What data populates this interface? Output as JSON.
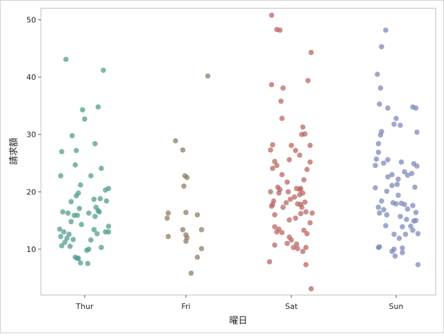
{
  "chart_data": {
    "type": "scatter",
    "subtype": "strip-plot-with-jitter",
    "xlabel": "曜日",
    "ylabel": "請求額",
    "categories": [
      "Thur",
      "Fri",
      "Sat",
      "Sun"
    ],
    "ylim": [
      2,
      52
    ],
    "yticks": [
      10,
      20,
      30,
      40,
      50
    ],
    "grid": false,
    "legend": "none",
    "colors": {
      "Thur": "#4c9a8c",
      "Fri": "#8f7a5e",
      "Sat": "#b8625d",
      "Sun": "#7a86b8"
    },
    "series": [
      {
        "category": "Thur",
        "points": [
          [
            -0.18,
            43.1
          ],
          [
            0.18,
            41.2
          ],
          [
            0.13,
            34.8
          ],
          [
            -0.02,
            34.3
          ],
          [
            0.0,
            32.7
          ],
          [
            -0.12,
            29.8
          ],
          [
            0.1,
            28.4
          ],
          [
            -0.22,
            27.0
          ],
          [
            -0.08,
            27.2
          ],
          [
            -0.09,
            24.7
          ],
          [
            0.16,
            24.1
          ],
          [
            -0.23,
            22.8
          ],
          [
            0.06,
            22.8
          ],
          [
            -0.04,
            21.2
          ],
          [
            0.23,
            20.6
          ],
          [
            0.2,
            20.3
          ],
          [
            -0.06,
            19.8
          ],
          [
            -0.08,
            19.3
          ],
          [
            -0.13,
            18.3
          ],
          [
            0.15,
            18.8
          ],
          [
            0.09,
            18.7
          ],
          [
            0.21,
            18.4
          ],
          [
            0.11,
            17.3
          ],
          [
            -0.05,
            17.1
          ],
          [
            0.14,
            16.5
          ],
          [
            -0.21,
            16.5
          ],
          [
            0.13,
            16.7
          ],
          [
            -0.16,
            16.3
          ],
          [
            0.04,
            16.3
          ],
          [
            -0.1,
            15.9
          ],
          [
            -0.07,
            15.9
          ],
          [
            0.1,
            15.7
          ],
          [
            -0.13,
            14.8
          ],
          [
            0.23,
            14.0
          ],
          [
            -0.03,
            14.3
          ],
          [
            0.09,
            13.4
          ],
          [
            -0.24,
            13.5
          ],
          [
            -0.2,
            13.0
          ],
          [
            0.2,
            13.0
          ],
          [
            0.23,
            13.0
          ],
          [
            0.12,
            12.7
          ],
          [
            -0.15,
            12.6
          ],
          [
            -0.23,
            12.2
          ],
          [
            -0.17,
            11.9
          ],
          [
            0.06,
            11.6
          ],
          [
            -0.11,
            11.7
          ],
          [
            -0.19,
            11.2
          ],
          [
            0.16,
            10.3
          ],
          [
            -0.22,
            10.6
          ],
          [
            -0.14,
            10.5
          ],
          [
            0.04,
            10.0
          ],
          [
            0.02,
            9.8
          ],
          [
            -0.09,
            8.6
          ],
          [
            -0.06,
            8.4
          ],
          [
            -0.07,
            8.4
          ],
          [
            -0.04,
            7.6
          ],
          [
            0.03,
            7.5
          ]
        ]
      },
      {
        "category": "Fri",
        "points": [
          [
            0.21,
            40.2
          ],
          [
            -0.1,
            28.9
          ],
          [
            -0.03,
            27.3
          ],
          [
            -0.01,
            22.8
          ],
          [
            0.01,
            22.5
          ],
          [
            -0.02,
            21.0
          ],
          [
            -0.17,
            16.3
          ],
          [
            0.0,
            16.4
          ],
          [
            0.11,
            16.0
          ],
          [
            -0.18,
            15.4
          ],
          [
            -0.03,
            13.4
          ],
          [
            0.15,
            13.4
          ],
          [
            0.0,
            12.5
          ],
          [
            -0.17,
            12.2
          ],
          [
            0.01,
            12.0
          ],
          [
            0.0,
            11.4
          ],
          [
            0.15,
            10.1
          ],
          [
            0.11,
            8.6
          ],
          [
            0.05,
            5.8
          ]
        ]
      },
      {
        "category": "Sat",
        "points": [
          [
            -0.19,
            50.8
          ],
          [
            -0.14,
            48.3
          ],
          [
            -0.11,
            48.2
          ],
          [
            0.19,
            44.3
          ],
          [
            0.16,
            39.4
          ],
          [
            -0.19,
            38.7
          ],
          [
            -0.08,
            38.1
          ],
          [
            -0.1,
            35.8
          ],
          [
            -0.09,
            32.8
          ],
          [
            0.11,
            31.3
          ],
          [
            0.13,
            30.1
          ],
          [
            0.1,
            30.0
          ],
          [
            0.0,
            28.1
          ],
          [
            0.18,
            28.1
          ],
          [
            -0.18,
            28.2
          ],
          [
            -0.2,
            27.3
          ],
          [
            0.04,
            27.2
          ],
          [
            0.08,
            26.4
          ],
          [
            -0.02,
            25.6
          ],
          [
            -0.16,
            25.3
          ],
          [
            0.18,
            25.2
          ],
          [
            -0.14,
            24.6
          ],
          [
            -0.18,
            24.1
          ],
          [
            0.15,
            23.9
          ],
          [
            -0.09,
            23.0
          ],
          [
            0.12,
            22.1
          ],
          [
            -0.04,
            21.7
          ],
          [
            -0.13,
            20.8
          ],
          [
            -0.11,
            20.4
          ],
          [
            0.05,
            20.6
          ],
          [
            0.09,
            20.6
          ],
          [
            0.08,
            20.4
          ],
          [
            -0.2,
            20.0
          ],
          [
            -0.03,
            20.0
          ],
          [
            -0.12,
            19.8
          ],
          [
            0.11,
            19.8
          ],
          [
            0.08,
            19.5
          ],
          [
            0.03,
            19.1
          ],
          [
            -0.01,
            18.7
          ],
          [
            -0.17,
            18.4
          ],
          [
            0.13,
            18.2
          ],
          [
            -0.05,
            18.1
          ],
          [
            0.06,
            17.9
          ],
          [
            0.09,
            17.8
          ],
          [
            -0.18,
            17.8
          ],
          [
            -0.19,
            17.5
          ],
          [
            0.1,
            17.3
          ],
          [
            -0.08,
            17.3
          ],
          [
            0.14,
            16.5
          ],
          [
            0.2,
            16.3
          ],
          [
            0.09,
            16.2
          ],
          [
            -0.16,
            16.0
          ],
          [
            0.04,
            15.4
          ],
          [
            -0.02,
            15.1
          ],
          [
            0.18,
            14.6
          ],
          [
            -0.16,
            13.9
          ],
          [
            -0.12,
            13.5
          ],
          [
            0.12,
            13.3
          ],
          [
            -0.14,
            13.0
          ],
          [
            -0.09,
            12.9
          ],
          [
            0.15,
            12.7
          ],
          [
            -0.02,
            12.1
          ],
          [
            0.0,
            11.6
          ],
          [
            -0.04,
            11.0
          ],
          [
            0.05,
            10.9
          ],
          [
            -0.16,
            10.7
          ],
          [
            0.14,
            10.3
          ],
          [
            0.02,
            10.3
          ],
          [
            0.06,
            10.1
          ],
          [
            0.11,
            9.6
          ],
          [
            -0.21,
            7.8
          ],
          [
            0.14,
            7.3
          ],
          [
            0.19,
            3.1
          ]
        ]
      },
      {
        "category": "Sun",
        "points": [
          [
            -0.1,
            48.2
          ],
          [
            -0.14,
            45.3
          ],
          [
            -0.18,
            40.5
          ],
          [
            -0.15,
            38.1
          ],
          [
            -0.16,
            35.3
          ],
          [
            0.16,
            34.8
          ],
          [
            0.19,
            34.6
          ],
          [
            -0.08,
            34.6
          ],
          [
            0.0,
            32.8
          ],
          [
            -0.02,
            31.8
          ],
          [
            0.04,
            31.6
          ],
          [
            0.2,
            30.4
          ],
          [
            -0.14,
            30.5
          ],
          [
            -0.15,
            29.9
          ],
          [
            -0.17,
            28.4
          ],
          [
            -0.17,
            26.9
          ],
          [
            -0.08,
            25.6
          ],
          [
            -0.19,
            25.7
          ],
          [
            0.05,
            25.2
          ],
          [
            -0.12,
            25.0
          ],
          [
            0.17,
            24.9
          ],
          [
            -0.2,
            24.6
          ],
          [
            0.2,
            24.5
          ],
          [
            0.15,
            23.2
          ],
          [
            -0.04,
            23.0
          ],
          [
            0.08,
            23.5
          ],
          [
            0.11,
            22.9
          ],
          [
            -0.08,
            22.6
          ],
          [
            0.02,
            22.2
          ],
          [
            0.01,
            21.3
          ],
          [
            -0.04,
            21.1
          ],
          [
            0.18,
            20.8
          ],
          [
            -0.2,
            20.7
          ],
          [
            -0.09,
            20.1
          ],
          [
            0.02,
            19.4
          ],
          [
            -0.14,
            18.4
          ],
          [
            -0.03,
            18.1
          ],
          [
            0.05,
            18.0
          ],
          [
            0.0,
            17.9
          ],
          [
            0.08,
            17.8
          ],
          [
            0.16,
            17.6
          ],
          [
            -0.17,
            17.3
          ],
          [
            0.11,
            17.0
          ],
          [
            -0.12,
            16.9
          ],
          [
            -0.16,
            16.3
          ],
          [
            0.19,
            16.4
          ],
          [
            -0.09,
            16.0
          ],
          [
            0.04,
            15.7
          ],
          [
            0.1,
            15.2
          ],
          [
            0.19,
            15.0
          ],
          [
            0.17,
            14.9
          ],
          [
            -0.1,
            14.1
          ],
          [
            0.14,
            14.0
          ],
          [
            0.06,
            13.9
          ],
          [
            0.16,
            13.3
          ],
          [
            0.09,
            12.6
          ],
          [
            -0.02,
            12.6
          ],
          [
            0.21,
            12.7
          ],
          [
            0.03,
            11.9
          ],
          [
            -0.16,
            10.4
          ],
          [
            -0.17,
            10.3
          ],
          [
            0.06,
            10.2
          ],
          [
            -0.02,
            10.0
          ],
          [
            -0.04,
            9.6
          ],
          [
            0.06,
            9.4
          ],
          [
            -0.01,
            8.8
          ],
          [
            0.21,
            7.3
          ]
        ]
      }
    ]
  }
}
